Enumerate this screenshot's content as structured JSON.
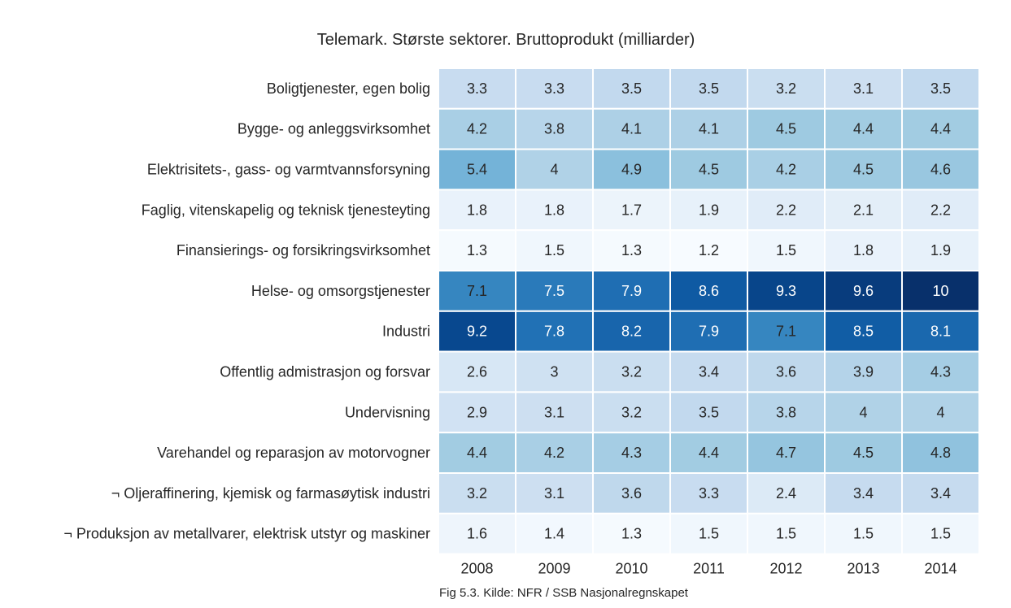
{
  "chart_data": {
    "type": "heatmap",
    "title": "Telemark. Største sektorer. Bruttoprodukt (milliarder)",
    "caption": "Fig 5.3. Kilde: NFR / SSB Nasjonalregnskapet",
    "colormap": "Blues",
    "vmin": 1.2,
    "vmax": 10,
    "columns": [
      "2008",
      "2009",
      "2010",
      "2011",
      "2012",
      "2013",
      "2014"
    ],
    "rows": [
      "Boligtjenester, egen bolig",
      "Bygge- og anleggsvirksomhet",
      "Elektrisitets-, gass- og varmtvannsforsyning",
      "Faglig, vitenskapelig og teknisk tjenesteyting",
      "Finansierings- og forsikringsvirksomhet",
      "Helse- og omsorgstjenester",
      "Industri",
      "Offentlig admistrasjon og forsvar",
      "Undervisning",
      "Varehandel og reparasjon av motorvogner",
      "¬ Oljeraffinering, kjemisk og farmasøytisk industri",
      "¬ Produksjon av metallvarer, elektrisk utstyr og maskiner"
    ],
    "values": [
      [
        3.3,
        3.3,
        3.5,
        3.5,
        3.2,
        3.1,
        3.5
      ],
      [
        4.2,
        3.8,
        4.1,
        4.1,
        4.5,
        4.4,
        4.4
      ],
      [
        5.4,
        4,
        4.9,
        4.5,
        4.2,
        4.5,
        4.6
      ],
      [
        1.8,
        1.8,
        1.7,
        1.9,
        2.2,
        2.1,
        2.2
      ],
      [
        1.3,
        1.5,
        1.3,
        1.2,
        1.5,
        1.8,
        1.9
      ],
      [
        7.1,
        7.5,
        7.9,
        8.6,
        9.3,
        9.6,
        10
      ],
      [
        9.2,
        7.8,
        8.2,
        7.9,
        7.1,
        8.5,
        8.1
      ],
      [
        2.6,
        3,
        3.2,
        3.4,
        3.6,
        3.9,
        4.3
      ],
      [
        2.9,
        3.1,
        3.2,
        3.5,
        3.8,
        4,
        4
      ],
      [
        4.4,
        4.2,
        4.3,
        4.4,
        4.7,
        4.5,
        4.8
      ],
      [
        3.2,
        3.1,
        3.6,
        3.3,
        2.4,
        3.4,
        3.4
      ],
      [
        1.6,
        1.4,
        1.3,
        1.5,
        1.5,
        1.5,
        1.5
      ]
    ]
  }
}
